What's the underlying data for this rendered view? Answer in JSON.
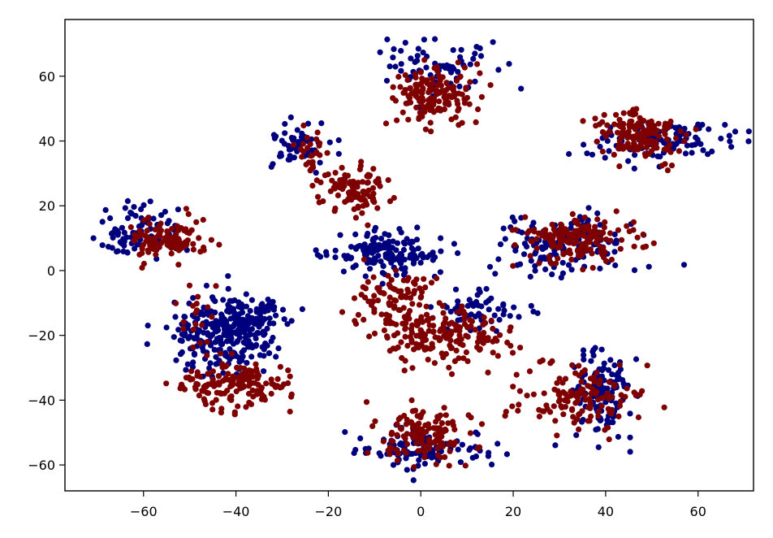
{
  "chart_data": {
    "type": "scatter",
    "title": "",
    "xlabel": "",
    "ylabel": "",
    "xlim": [
      -77,
      72
    ],
    "ylim": [
      -68,
      77.5
    ],
    "xticks": [
      -60,
      -40,
      -20,
      0,
      20,
      40,
      60
    ],
    "yticks": [
      -60,
      -40,
      -20,
      0,
      20,
      40,
      60
    ],
    "xtick_labels": [
      "−60",
      "−40",
      "−20",
      "0",
      "20",
      "40",
      "60"
    ],
    "ytick_labels": [
      "−60",
      "−40",
      "−20",
      "0",
      "20",
      "40",
      "60"
    ],
    "grid": false,
    "legend": "none",
    "seed": 7,
    "series": [
      {
        "color": "#00007f",
        "clusters": [
          {
            "cx": 3,
            "cy": 63,
            "sx": 6,
            "sy": 4.5,
            "n": 70
          },
          {
            "cx": 52,
            "cy": 40,
            "sx": 8,
            "sy": 3,
            "n": 110
          },
          {
            "cx": -27,
            "cy": 39,
            "sx": 3,
            "sy": 4,
            "n": 55
          },
          {
            "cx": -61,
            "cy": 12,
            "sx": 4.5,
            "sy": 4,
            "n": 80
          },
          {
            "cx": 32,
            "cy": 8,
            "sx": 8,
            "sy": 4.5,
            "n": 140
          },
          {
            "cx": -8,
            "cy": 5,
            "sx": 6,
            "sy": 3.5,
            "n": 150
          },
          {
            "cx": 13,
            "cy": -12,
            "sx": 5,
            "sy": 3,
            "n": 55
          },
          {
            "cx": -42,
            "cy": -20,
            "sx": 6,
            "sy": 6,
            "n": 260
          },
          {
            "cx": -35,
            "cy": -14,
            "sx": 3,
            "sy": 3,
            "n": 50
          },
          {
            "cx": -0.5,
            "cy": -55,
            "sx": 7,
            "sy": 3,
            "n": 100
          },
          {
            "cx": 39,
            "cy": -38,
            "sx": 3.5,
            "sy": 6.5,
            "n": 130
          }
        ]
      },
      {
        "color": "#7f0000",
        "clusters": [
          {
            "cx": 3,
            "cy": 54,
            "sx": 4.5,
            "sy": 4,
            "n": 150
          },
          {
            "cx": 47,
            "cy": 42,
            "sx": 5,
            "sy": 3.5,
            "n": 150
          },
          {
            "cx": -24,
            "cy": 37,
            "sx": 1.5,
            "sy": 3,
            "n": 25
          },
          {
            "cx": -15,
            "cy": 25,
            "sx": 4,
            "sy": 3.5,
            "n": 110
          },
          {
            "cx": -55,
            "cy": 10,
            "sx": 4.5,
            "sy": 3,
            "n": 110
          },
          {
            "cx": 34,
            "cy": 10,
            "sx": 6,
            "sy": 3.5,
            "n": 160
          },
          {
            "cx": -6,
            "cy": -9,
            "sx": 4,
            "sy": 4.5,
            "n": 90
          },
          {
            "cx": 5,
            "cy": -20,
            "sx": 7,
            "sy": 4.5,
            "n": 180
          },
          {
            "cx": -40,
            "cy": -35,
            "sx": 6,
            "sy": 3.5,
            "n": 160
          },
          {
            "cx": -48,
            "cy": -15,
            "sx": 2,
            "sy": 5,
            "n": 20
          },
          {
            "cx": 1,
            "cy": -51,
            "sx": 5,
            "sy": 4.5,
            "n": 130
          },
          {
            "cx": 34,
            "cy": -40,
            "sx": 7,
            "sy": 5,
            "n": 130
          }
        ]
      }
    ]
  }
}
